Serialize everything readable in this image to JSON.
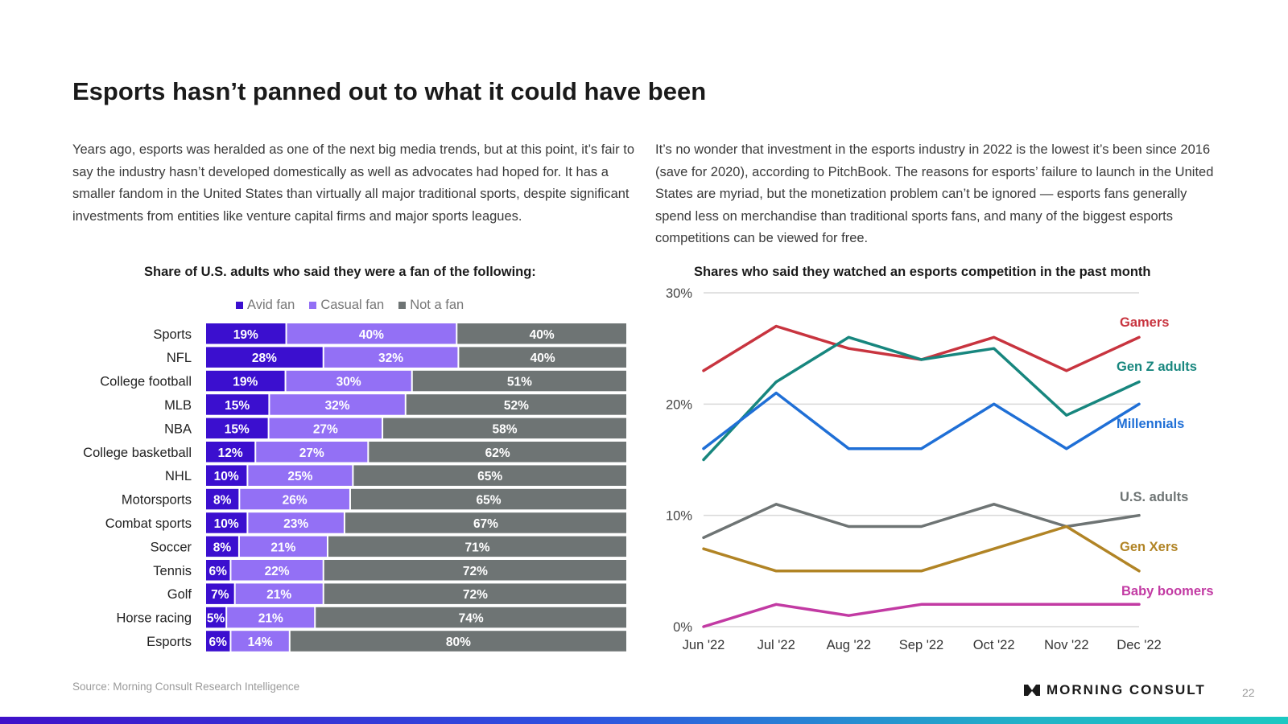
{
  "title": "Esports hasn’t panned out to what it could have been",
  "paragraph_left": "Years ago, esports was heralded as one of the next big media trends, but at this point, it’s fair to say the industry hasn’t developed domestically as well as advocates had hoped for. It has a smaller fandom in the United States than virtually all major traditional sports, despite significant investments from entities like venture capital firms and major sports leagues.",
  "paragraph_right": "It’s no wonder that investment in the esports industry in 2022 is the lowest it’s been since 2016 (save for 2020), according to PitchBook. The reasons for esports’ failure to launch in the United States are myriad, but the monetization problem can’t be ignored — esports fans generally spend less on merchandise than traditional sports fans, and many of the biggest esports competitions can be viewed for free.",
  "source": "Source: Morning Consult Research Intelligence",
  "logo_text": "MORNING CONSULT",
  "page_number": "22",
  "colors": {
    "avid": "#3b0fcf",
    "casual": "#9370f5",
    "not_fan": "#6e7474",
    "gamers": "#c8343f",
    "genz": "#17867e",
    "millennials": "#1f6fd6",
    "us_adults": "#6e7474",
    "genx": "#b18425",
    "boomers": "#c23aa3"
  },
  "chart_data": [
    {
      "type": "bar",
      "stacked": true,
      "orientation": "horizontal",
      "title": "Share of U.S. adults who said they were a fan of the following:",
      "legend_position": "top",
      "categories": [
        "Sports",
        "NFL",
        "College football",
        "MLB",
        "NBA",
        "College basketball",
        "NHL",
        "Motorsports",
        "Combat sports",
        "Soccer",
        "Tennis",
        "Golf",
        "Horse racing",
        "Esports"
      ],
      "series": [
        {
          "name": "Avid fan",
          "values": [
            19,
            28,
            19,
            15,
            15,
            12,
            10,
            8,
            10,
            8,
            6,
            7,
            5,
            6
          ]
        },
        {
          "name": "Casual fan",
          "values": [
            40,
            32,
            30,
            32,
            27,
            27,
            25,
            26,
            23,
            21,
            22,
            21,
            21,
            14
          ]
        },
        {
          "name": "Not a fan",
          "values": [
            40,
            40,
            51,
            52,
            58,
            62,
            65,
            65,
            67,
            71,
            72,
            72,
            74,
            80
          ]
        }
      ]
    },
    {
      "type": "line",
      "title": "Shares who said they watched an esports competition in the past month",
      "x": [
        "Jun '22",
        "Jul '22",
        "Aug '22",
        "Sep '22",
        "Oct '22",
        "Nov '22",
        "Dec '22"
      ],
      "y_ticks": [
        "0%",
        "10%",
        "20%",
        "30%"
      ],
      "ylim": [
        0,
        30
      ],
      "grid": true,
      "series": [
        {
          "name": "Gamers",
          "values": [
            23,
            27,
            25,
            24,
            26,
            23,
            26
          ]
        },
        {
          "name": "Gen Z adults",
          "values": [
            15,
            22,
            26,
            24,
            25,
            19,
            22
          ]
        },
        {
          "name": "Millennials",
          "values": [
            16,
            21,
            16,
            16,
            20,
            16,
            20
          ]
        },
        {
          "name": "U.S. adults",
          "values": [
            8,
            11,
            9,
            9,
            11,
            9,
            10
          ]
        },
        {
          "name": "Gen Xers",
          "values": [
            7,
            5,
            5,
            5,
            7,
            9,
            5
          ]
        },
        {
          "name": "Baby boomers",
          "values": [
            0,
            2,
            1,
            2,
            2,
            2,
            2
          ]
        }
      ]
    }
  ]
}
